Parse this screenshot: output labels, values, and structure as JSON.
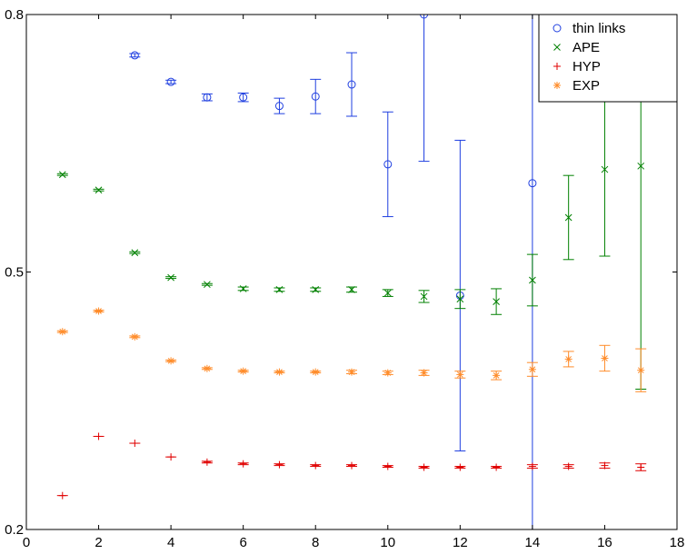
{
  "chart_data": {
    "type": "scatter",
    "title": "",
    "xlabel": "",
    "ylabel": "",
    "xlim": [
      0,
      18
    ],
    "ylim": [
      0.2,
      0.8
    ],
    "grid": false,
    "legend_position": "top-right",
    "x_ticks": [
      0,
      2,
      4,
      6,
      8,
      10,
      12,
      14,
      16,
      18
    ],
    "x_tick_labels": [
      "0",
      "2",
      "4",
      "6",
      "8",
      "10",
      "12",
      "14",
      "16",
      "18"
    ],
    "y_ticks": [
      0.2,
      0.5,
      0.8
    ],
    "y_tick_labels": [
      "0.2",
      "0.5",
      "0.8"
    ],
    "series": [
      {
        "name": "thin links",
        "marker": "circle",
        "color": "#1f3fe0",
        "points": [
          {
            "x": 3,
            "y": 0.7525,
            "err": 0.002
          },
          {
            "x": 4,
            "y": 0.7215,
            "err": 0.002
          },
          {
            "x": 5,
            "y": 0.7035,
            "err": 0.004
          },
          {
            "x": 6,
            "y": 0.7035,
            "err": 0.005
          },
          {
            "x": 7,
            "y": 0.6935,
            "err": 0.009
          },
          {
            "x": 8,
            "y": 0.7045,
            "err": 0.02
          },
          {
            "x": 9,
            "y": 0.7185,
            "err": 0.037
          },
          {
            "x": 10,
            "y": 0.6255,
            "err": 0.061
          },
          {
            "x": 11,
            "y": 0.8,
            "err": 0.171
          },
          {
            "x": 12,
            "y": 0.4725,
            "err": 0.181
          },
          {
            "x": 14,
            "y": 0.6035,
            "err": 0.42
          }
        ]
      },
      {
        "name": "APE",
        "marker": "x",
        "color": "#008000",
        "points": [
          {
            "x": 1,
            "y": 0.6135,
            "err": 0.001
          },
          {
            "x": 2,
            "y": 0.5955,
            "err": 0.001
          },
          {
            "x": 3,
            "y": 0.5225,
            "err": 0.001
          },
          {
            "x": 4,
            "y": 0.4935,
            "err": 0.001
          },
          {
            "x": 5,
            "y": 0.4855,
            "err": 0.001
          },
          {
            "x": 6,
            "y": 0.4805,
            "err": 0.002
          },
          {
            "x": 7,
            "y": 0.4795,
            "err": 0.002
          },
          {
            "x": 8,
            "y": 0.4795,
            "err": 0.002
          },
          {
            "x": 9,
            "y": 0.4795,
            "err": 0.003
          },
          {
            "x": 10,
            "y": 0.4755,
            "err": 0.004
          },
          {
            "x": 11,
            "y": 0.4715,
            "err": 0.007
          },
          {
            "x": 12,
            "y": 0.4685,
            "err": 0.011
          },
          {
            "x": 13,
            "y": 0.4655,
            "err": 0.015
          },
          {
            "x": 14,
            "y": 0.4905,
            "err": 0.03
          },
          {
            "x": 15,
            "y": 0.5635,
            "err": 0.049
          },
          {
            "x": 16,
            "y": 0.6195,
            "err": 0.101
          },
          {
            "x": 17,
            "y": 0.6235,
            "err": 0.26
          }
        ]
      },
      {
        "name": "HYP",
        "marker": "plus",
        "color": "#e00000",
        "points": [
          {
            "x": 1,
            "y": 0.2395,
            "err": 0.0
          },
          {
            "x": 2,
            "y": 0.3085,
            "err": 0.0
          },
          {
            "x": 3,
            "y": 0.3005,
            "err": 0.0
          },
          {
            "x": 4,
            "y": 0.2845,
            "err": 0.0
          },
          {
            "x": 5,
            "y": 0.2785,
            "err": 0.001
          },
          {
            "x": 6,
            "y": 0.2765,
            "err": 0.001
          },
          {
            "x": 7,
            "y": 0.2755,
            "err": 0.001
          },
          {
            "x": 8,
            "y": 0.2745,
            "err": 0.001
          },
          {
            "x": 9,
            "y": 0.2745,
            "err": 0.001
          },
          {
            "x": 10,
            "y": 0.2735,
            "err": 0.001
          },
          {
            "x": 11,
            "y": 0.2725,
            "err": 0.001
          },
          {
            "x": 12,
            "y": 0.2725,
            "err": 0.001
          },
          {
            "x": 13,
            "y": 0.2725,
            "err": 0.001
          },
          {
            "x": 14,
            "y": 0.2735,
            "err": 0.002
          },
          {
            "x": 15,
            "y": 0.2735,
            "err": 0.002
          },
          {
            "x": 16,
            "y": 0.2745,
            "err": 0.003
          },
          {
            "x": 17,
            "y": 0.2725,
            "err": 0.004
          }
        ]
      },
      {
        "name": "EXP",
        "marker": "asterisk",
        "color": "#ff8c2a",
        "points": [
          {
            "x": 1,
            "y": 0.4305,
            "err": 0.001
          },
          {
            "x": 2,
            "y": 0.4545,
            "err": 0.001
          },
          {
            "x": 3,
            "y": 0.4245,
            "err": 0.001
          },
          {
            "x": 4,
            "y": 0.3965,
            "err": 0.001
          },
          {
            "x": 5,
            "y": 0.3875,
            "err": 0.001
          },
          {
            "x": 6,
            "y": 0.3845,
            "err": 0.001
          },
          {
            "x": 7,
            "y": 0.3835,
            "err": 0.001
          },
          {
            "x": 8,
            "y": 0.3835,
            "err": 0.001
          },
          {
            "x": 9,
            "y": 0.3835,
            "err": 0.002
          },
          {
            "x": 10,
            "y": 0.3825,
            "err": 0.002
          },
          {
            "x": 11,
            "y": 0.3825,
            "err": 0.003
          },
          {
            "x": 12,
            "y": 0.3805,
            "err": 0.004
          },
          {
            "x": 13,
            "y": 0.3795,
            "err": 0.005
          },
          {
            "x": 14,
            "y": 0.3865,
            "err": 0.008
          },
          {
            "x": 15,
            "y": 0.3985,
            "err": 0.009
          },
          {
            "x": 16,
            "y": 0.3995,
            "err": 0.015
          },
          {
            "x": 17,
            "y": 0.3855,
            "err": 0.025
          }
        ]
      }
    ]
  }
}
